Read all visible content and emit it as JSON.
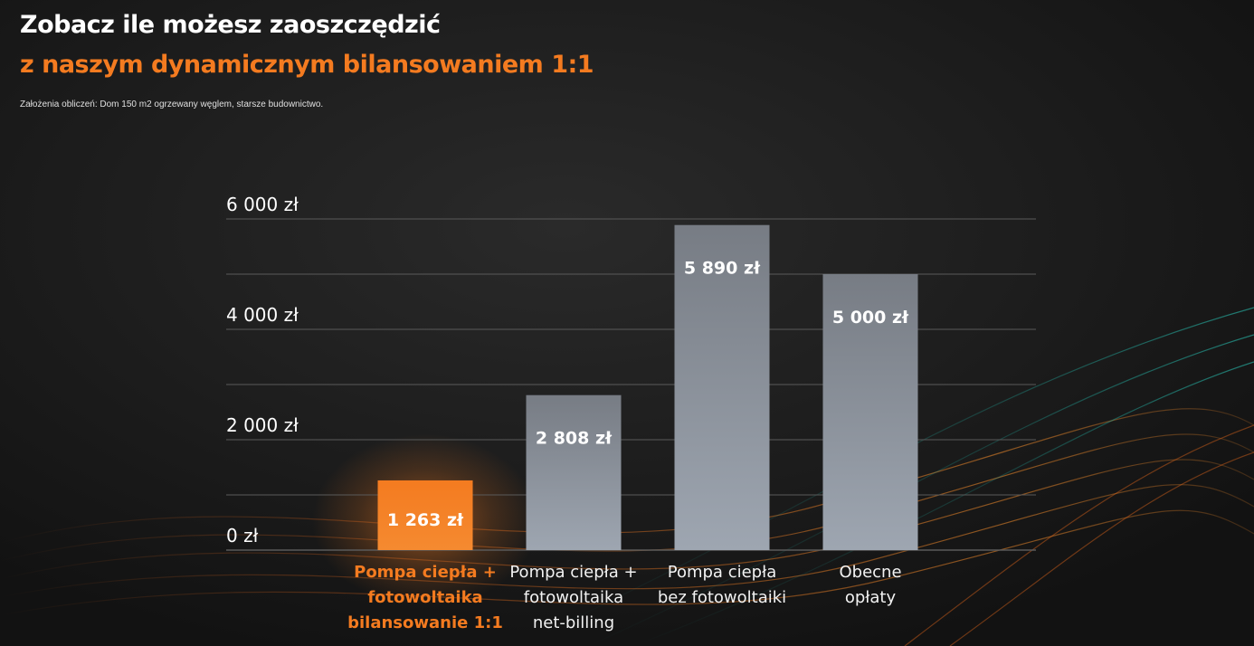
{
  "header": {
    "title": "Zobacz ile możesz zaoszczędzić",
    "subtitle": "z naszym dynamicznym bilansowaniem 1:1",
    "note": "Założenia obliczeń: Dom 150 m2 ogrzewany węglem, starsze budownictwo."
  },
  "colors": {
    "accent": "#f47b20",
    "bar": "#9aa1ab",
    "background": "#151515"
  },
  "chart_data": {
    "type": "bar",
    "categories": [
      "Pompa ciepła +\nfotowoltaika\nbilansowanie 1:1",
      "Pompa ciepła +\nfotowoltaika\nnet-billing",
      "Pompa ciepła\nbez fotowoltaiki",
      "Obecne\nopłaty"
    ],
    "values": [
      1263,
      2808,
      5890,
      5000
    ],
    "value_labels": [
      "1 263 zł",
      "2 808 zł",
      "5 890 zł",
      "5 000 zł"
    ],
    "highlight_index": 0,
    "ylim": [
      0,
      6000
    ],
    "yticks": [
      0,
      2000,
      4000,
      6000
    ],
    "ytick_labels": [
      "0 zł",
      "2 000 zł",
      "4 000 zł",
      "6 000 zł"
    ],
    "grid": true
  }
}
